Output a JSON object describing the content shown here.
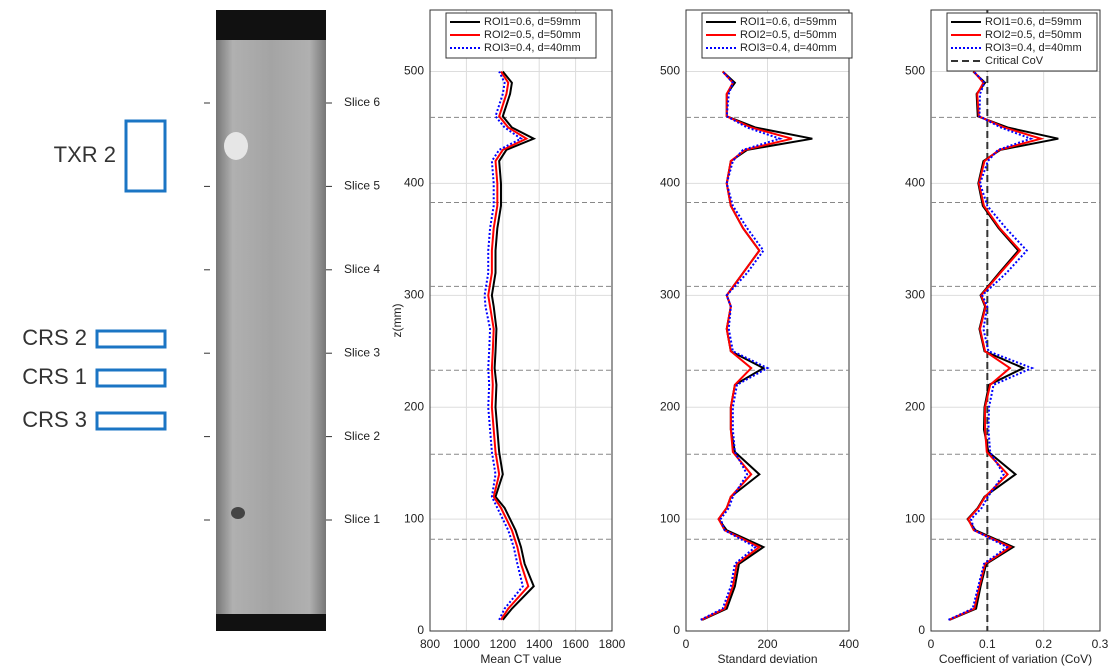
{
  "figure": {
    "roi_labels": [
      "TXR 2",
      "CRS 2",
      "CRS 1",
      "CRS 3"
    ],
    "slices": [
      "Slice 1",
      "Slice 2",
      "Slice 3",
      "Slice 4",
      "Slice 5",
      "Slice 6"
    ]
  },
  "chart_data": [
    {
      "type": "line",
      "ylabel": "z(mm)",
      "xlabel": "Mean CT value",
      "z": [
        10,
        20,
        40,
        60,
        75,
        90,
        100,
        110,
        120,
        140,
        160,
        180,
        200,
        220,
        235,
        250,
        270,
        290,
        300,
        320,
        340,
        360,
        380,
        400,
        420,
        430,
        440,
        450,
        460,
        480,
        490,
        500
      ],
      "xlim": [
        800,
        1800
      ],
      "xticks": [
        800,
        1000,
        1200,
        1400,
        1600,
        1800
      ],
      "ylim": [
        0,
        555
      ],
      "yticks": [
        0,
        100,
        200,
        300,
        400,
        500
      ],
      "grid": true,
      "reference_z": [
        82,
        158,
        233,
        308,
        383,
        459
      ],
      "series": [
        {
          "name": "ROI1=0.6, d=59mm",
          "color": "#000000",
          "values": [
            1200,
            1250,
            1370,
            1320,
            1300,
            1270,
            1240,
            1210,
            1160,
            1200,
            1180,
            1170,
            1160,
            1165,
            1155,
            1160,
            1165,
            1150,
            1140,
            1160,
            1160,
            1170,
            1190,
            1190,
            1180,
            1220,
            1370,
            1250,
            1200,
            1240,
            1250,
            1200
          ]
        },
        {
          "name": "ROI2=0.5, d=50mm",
          "color": "#ff0000",
          "values": [
            1190,
            1230,
            1340,
            1300,
            1280,
            1250,
            1220,
            1190,
            1150,
            1180,
            1160,
            1150,
            1140,
            1145,
            1140,
            1145,
            1150,
            1130,
            1120,
            1140,
            1140,
            1150,
            1170,
            1170,
            1160,
            1200,
            1330,
            1230,
            1180,
            1220,
            1230,
            1190
          ]
        },
        {
          "name": "ROI3=0.4, d=40mm",
          "color": "#0000ff",
          "values": [
            1180,
            1210,
            1310,
            1280,
            1260,
            1230,
            1200,
            1170,
            1140,
            1160,
            1140,
            1130,
            1120,
            1125,
            1120,
            1125,
            1130,
            1105,
            1100,
            1120,
            1120,
            1130,
            1150,
            1150,
            1140,
            1180,
            1300,
            1210,
            1160,
            1200,
            1210,
            1180
          ]
        }
      ]
    },
    {
      "type": "line",
      "xlabel": "Standard deviation",
      "z": [
        10,
        20,
        40,
        60,
        75,
        90,
        100,
        110,
        120,
        140,
        160,
        180,
        200,
        220,
        235,
        250,
        270,
        290,
        300,
        320,
        340,
        360,
        380,
        400,
        420,
        430,
        440,
        450,
        460,
        480,
        490,
        500
      ],
      "xlim": [
        0,
        400
      ],
      "xticks": [
        0,
        200,
        400
      ],
      "ylim": [
        0,
        555
      ],
      "yticks": [
        0,
        100,
        200,
        300,
        400,
        500
      ],
      "grid": true,
      "reference_z": [
        82,
        158,
        233,
        308,
        383,
        459
      ],
      "series": [
        {
          "name": "ROI1=0.6, d=59mm",
          "color": "#000000",
          "values": [
            40,
            100,
            120,
            130,
            190,
            100,
            80,
            100,
            110,
            180,
            120,
            110,
            110,
            120,
            190,
            110,
            100,
            110,
            100,
            140,
            180,
            140,
            110,
            100,
            110,
            150,
            310,
            170,
            100,
            100,
            120,
            90
          ]
        },
        {
          "name": "ROI2=0.5, d=50mm",
          "color": "#ff0000",
          "values": [
            38,
            95,
            115,
            125,
            180,
            95,
            80,
            100,
            110,
            160,
            115,
            110,
            110,
            120,
            160,
            110,
            100,
            110,
            100,
            140,
            180,
            140,
            110,
            100,
            110,
            145,
            260,
            160,
            100,
            100,
            115,
            90
          ]
        },
        {
          "name": "ROI3=0.4, d=40mm",
          "color": "#0000ff",
          "values": [
            36,
            90,
            110,
            120,
            170,
            95,
            85,
            105,
            115,
            150,
            120,
            115,
            115,
            125,
            200,
            115,
            105,
            110,
            100,
            150,
            190,
            150,
            115,
            100,
            115,
            140,
            230,
            150,
            100,
            105,
            115,
            90
          ]
        }
      ]
    },
    {
      "type": "line",
      "xlabel": "Coefficient of variation (CoV)",
      "z": [
        10,
        20,
        40,
        60,
        75,
        90,
        100,
        110,
        120,
        140,
        160,
        180,
        200,
        220,
        235,
        250,
        270,
        290,
        300,
        320,
        340,
        360,
        380,
        400,
        420,
        430,
        440,
        450,
        460,
        480,
        490,
        500
      ],
      "xlim": [
        0,
        0.3
      ],
      "xticks": [
        0,
        0.1,
        0.2,
        0.3
      ],
      "ylim": [
        0,
        555
      ],
      "yticks": [
        0,
        100,
        200,
        300,
        400,
        500
      ],
      "grid": true,
      "reference_z": [
        82,
        158,
        233,
        308,
        383,
        459
      ],
      "reference_line": {
        "name": "Critical CoV",
        "value": 0.1,
        "color": "#333333"
      },
      "series": [
        {
          "name": "ROI1=0.6, d=59mm",
          "color": "#000000",
          "values": [
            0.033,
            0.08,
            0.088,
            0.098,
            0.146,
            0.079,
            0.065,
            0.083,
            0.095,
            0.15,
            0.102,
            0.094,
            0.095,
            0.103,
            0.164,
            0.095,
            0.086,
            0.096,
            0.088,
            0.121,
            0.155,
            0.12,
            0.092,
            0.084,
            0.093,
            0.123,
            0.226,
            0.136,
            0.083,
            0.081,
            0.096,
            0.075
          ]
        },
        {
          "name": "ROI2=0.5, d=50mm",
          "color": "#ff0000",
          "values": [
            0.032,
            0.077,
            0.086,
            0.096,
            0.141,
            0.076,
            0.066,
            0.084,
            0.096,
            0.136,
            0.099,
            0.096,
            0.096,
            0.105,
            0.14,
            0.096,
            0.087,
            0.097,
            0.089,
            0.123,
            0.158,
            0.122,
            0.094,
            0.085,
            0.095,
            0.121,
            0.195,
            0.13,
            0.085,
            0.082,
            0.093,
            0.076
          ]
        },
        {
          "name": "ROI3=0.4, d=40mm",
          "color": "#0000ff",
          "values": [
            0.031,
            0.074,
            0.084,
            0.094,
            0.135,
            0.077,
            0.071,
            0.09,
            0.101,
            0.129,
            0.105,
            0.102,
            0.103,
            0.111,
            0.179,
            0.102,
            0.093,
            0.1,
            0.091,
            0.134,
            0.17,
            0.133,
            0.1,
            0.087,
            0.101,
            0.119,
            0.177,
            0.124,
            0.086,
            0.087,
            0.095,
            0.076
          ]
        }
      ]
    }
  ]
}
